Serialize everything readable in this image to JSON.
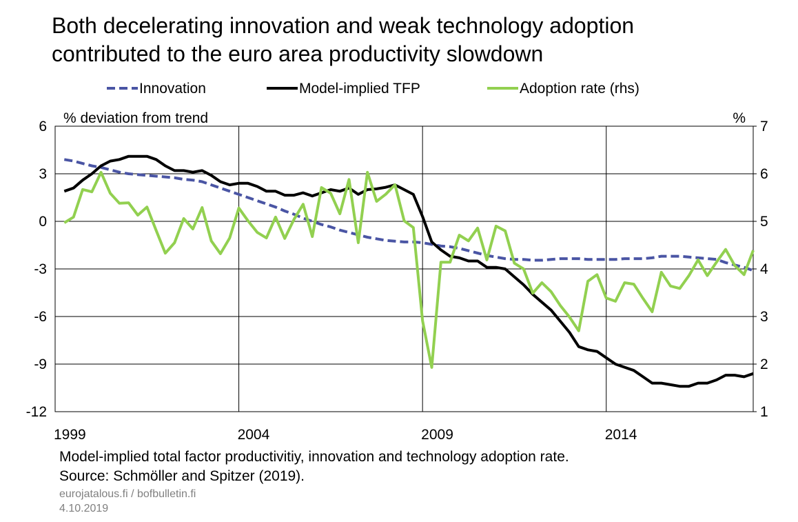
{
  "chart_data": {
    "type": "line",
    "title": [
      "Both decelerating innovation and weak technology adoption",
      "contributed to the euro area productivity slowdown"
    ],
    "y_label": "% deviation from trend",
    "y2_label": "%",
    "notes": [
      "Model-implied total factor productivitiy, innovation and technology adoption rate.",
      "Source: Schmöller and Spitzer (2019)."
    ],
    "credits": [
      "eurojatalous.fi / bofbulletin.fi",
      "4.10.2019"
    ],
    "xlim": [
      1999,
      2018
    ],
    "xticks": [
      1999,
      2004,
      2009,
      2014
    ],
    "ylim": [
      -12,
      6
    ],
    "yticks": [
      -12,
      -9,
      -6,
      -3,
      0,
      3,
      6
    ],
    "y2lim": [
      1,
      7
    ],
    "y2ticks": [
      1,
      2,
      3,
      4,
      5,
      6,
      7
    ],
    "grid": true,
    "legend": "top",
    "x": [
      1999.25,
      1999.5,
      1999.75,
      2000,
      2000.25,
      2000.5,
      2000.75,
      2001,
      2001.25,
      2001.5,
      2001.75,
      2002,
      2002.25,
      2002.5,
      2002.75,
      2003,
      2003.25,
      2003.5,
      2003.75,
      2004,
      2004.25,
      2004.5,
      2004.75,
      2005,
      2005.25,
      2005.5,
      2005.75,
      2006,
      2006.25,
      2006.5,
      2006.75,
      2007,
      2007.25,
      2007.5,
      2007.75,
      2008,
      2008.25,
      2008.5,
      2008.75,
      2009,
      2009.25,
      2009.5,
      2009.75,
      2010,
      2010.25,
      2010.5,
      2010.75,
      2011,
      2011.25,
      2011.5,
      2011.75,
      2012,
      2012.25,
      2012.5,
      2012.75,
      2013,
      2013.25,
      2013.5,
      2013.75,
      2014,
      2014.25,
      2014.5,
      2014.75,
      2015,
      2015.25,
      2015.5,
      2015.75,
      2016,
      2016.25,
      2016.5,
      2016.75,
      2017,
      2017.25,
      2017.5,
      2017.75,
      2018
    ],
    "series": [
      {
        "name": "Innovation",
        "color": "#4a55a4",
        "dash": true,
        "values": [
          3.9,
          3.8,
          3.65,
          3.5,
          3.4,
          3.25,
          3.1,
          3.0,
          2.95,
          2.9,
          2.85,
          2.8,
          2.75,
          2.65,
          2.6,
          2.5,
          2.3,
          2.1,
          1.9,
          1.7,
          1.5,
          1.3,
          1.1,
          0.9,
          0.65,
          0.45,
          0.2,
          0.0,
          -0.2,
          -0.35,
          -0.55,
          -0.7,
          -0.85,
          -1.0,
          -1.1,
          -1.2,
          -1.25,
          -1.3,
          -1.3,
          -1.35,
          -1.45,
          -1.55,
          -1.6,
          -1.7,
          -1.85,
          -2.0,
          -2.15,
          -2.25,
          -2.35,
          -2.4,
          -2.4,
          -2.45,
          -2.45,
          -2.4,
          -2.35,
          -2.35,
          -2.35,
          -2.4,
          -2.4,
          -2.4,
          -2.4,
          -2.35,
          -2.35,
          -2.35,
          -2.3,
          -2.2,
          -2.2,
          -2.2,
          -2.25,
          -2.3,
          -2.35,
          -2.4,
          -2.6,
          -2.75,
          -2.9,
          -3.1
        ]
      },
      {
        "name": "Model-implied TFP",
        "color": "#000000",
        "values": [
          1.9,
          2.1,
          2.6,
          3.0,
          3.5,
          3.8,
          3.9,
          4.1,
          4.1,
          4.1,
          3.9,
          3.5,
          3.2,
          3.2,
          3.1,
          3.2,
          2.9,
          2.5,
          2.3,
          2.4,
          2.4,
          2.2,
          1.9,
          1.9,
          1.65,
          1.65,
          1.8,
          1.6,
          1.8,
          2.0,
          1.9,
          2.1,
          1.7,
          2.0,
          2.05,
          2.15,
          2.3,
          2.0,
          1.7,
          0.3,
          -1.3,
          -1.8,
          -2.2,
          -2.3,
          -2.5,
          -2.5,
          -2.9,
          -2.9,
          -3.0,
          -3.5,
          -4.0,
          -4.6,
          -5.1,
          -5.6,
          -6.3,
          -7.0,
          -7.9,
          -8.1,
          -8.2,
          -8.6,
          -9.0,
          -9.2,
          -9.4,
          -9.8,
          -10.2,
          -10.2,
          -10.3,
          -10.4,
          -10.4,
          -10.2,
          -10.2,
          -10.0,
          -9.7,
          -9.7,
          -9.8,
          -9.6
        ]
      },
      {
        "name": "Adoption rate (rhs)",
        "color": "#92d050",
        "axis": "y2",
        "values": [
          4.97,
          5.09,
          5.67,
          5.62,
          6.03,
          5.59,
          5.38,
          5.39,
          5.13,
          5.3,
          4.81,
          4.33,
          4.55,
          5.06,
          4.84,
          5.29,
          4.59,
          4.32,
          4.65,
          5.28,
          5.01,
          4.77,
          4.65,
          5.09,
          4.64,
          5.04,
          5.36,
          4.68,
          5.71,
          5.59,
          5.16,
          5.88,
          4.55,
          6.03,
          5.42,
          5.57,
          5.77,
          5.01,
          4.87,
          2.91,
          1.93,
          4.14,
          4.14,
          4.71,
          4.59,
          4.86,
          4.19,
          4.9,
          4.8,
          4.12,
          4.0,
          3.49,
          3.71,
          3.52,
          3.23,
          2.99,
          2.7,
          3.74,
          3.88,
          3.39,
          3.32,
          3.71,
          3.68,
          3.38,
          3.1,
          3.93,
          3.64,
          3.59,
          3.86,
          4.19,
          3.86,
          4.14,
          4.41,
          4.07,
          3.88,
          4.39
        ]
      }
    ]
  }
}
